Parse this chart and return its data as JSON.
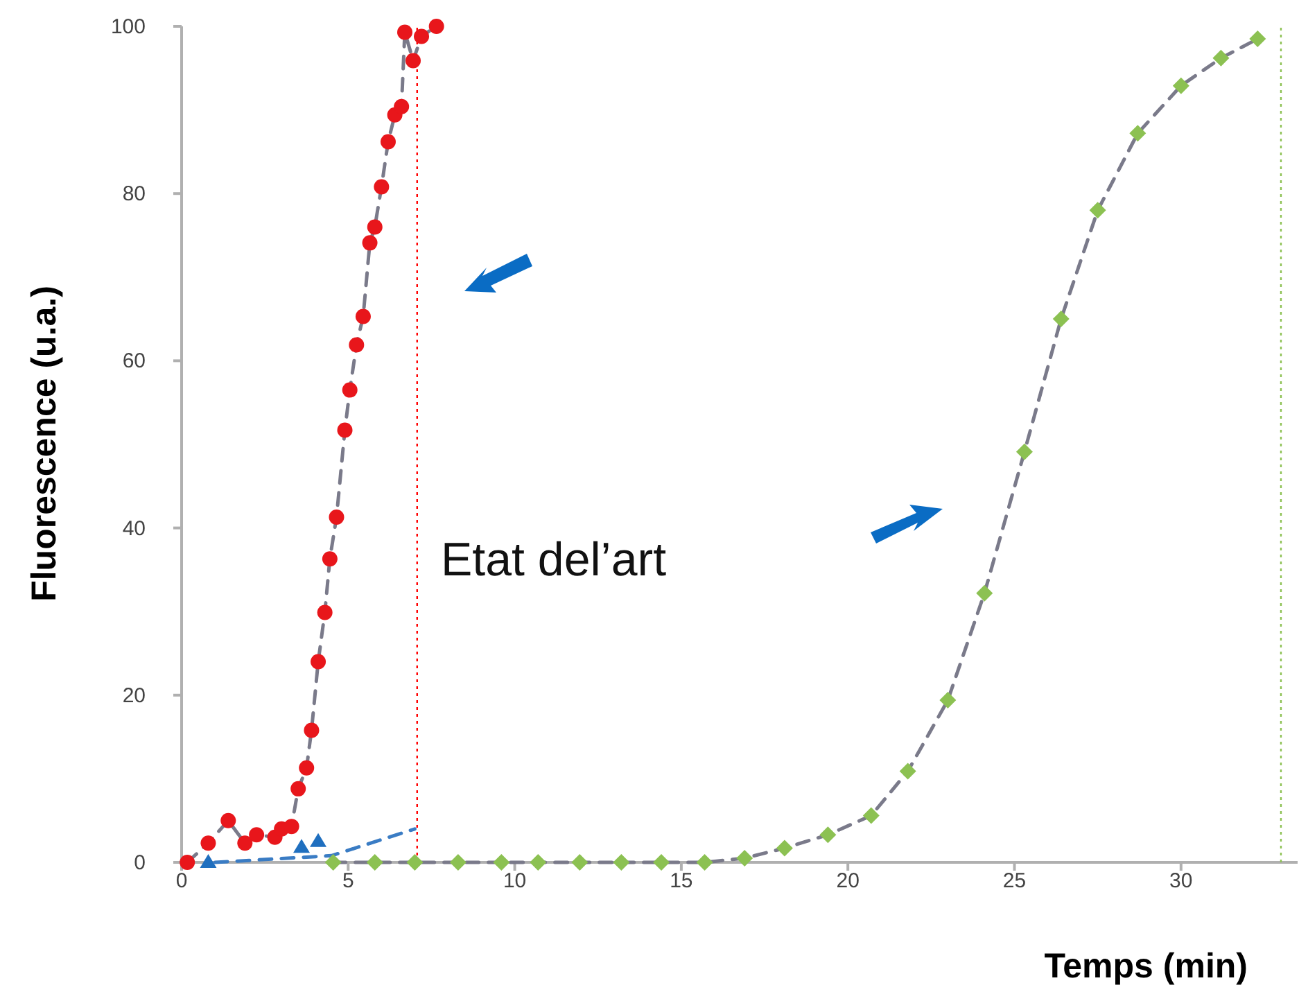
{
  "chart_data": {
    "type": "line",
    "xlabel": "Temps (min)",
    "ylabel": "Fluorescence (u.a.)",
    "xlim": [
      0,
      33.5
    ],
    "ylim": [
      0,
      100
    ],
    "xticks": [
      0,
      5,
      10,
      15,
      20,
      25,
      30
    ],
    "yticks": [
      0,
      20,
      40,
      60,
      80,
      100
    ],
    "grid": false,
    "line_style": "dashed",
    "series": [
      {
        "marker": "circle",
        "color": "#e8161b",
        "x": [
          0.17,
          0.8,
          1.4,
          1.9,
          2.25,
          2.8,
          3.0,
          3.3,
          3.5,
          3.75,
          3.9,
          4.1,
          4.3,
          4.45,
          4.65,
          4.9,
          5.05,
          5.25,
          5.45,
          5.65,
          5.8,
          6.0,
          6.2,
          6.4,
          6.6,
          6.7,
          6.95,
          7.2,
          7.65
        ],
        "values": [
          0,
          2.3,
          5,
          2.3,
          3.3,
          3.0,
          4.0,
          4.3,
          8.8,
          11.3,
          15.8,
          24,
          29.9,
          36.3,
          41.3,
          51.7,
          56.5,
          61.9,
          65.3,
          74.1,
          76,
          80.8,
          86.2,
          89.4,
          90.4,
          99.3,
          95.9,
          98.8,
          100
        ]
      },
      {
        "type": "scatter",
        "marker": "triangle",
        "color": "#1f6fbf",
        "x": [
          0.8,
          3.6,
          4.1
        ],
        "values": [
          0,
          1.8,
          2.5
        ]
      },
      {
        "marker": "none",
        "color": "#3a7cc4",
        "x": [
          1,
          4.5,
          7
        ],
        "values": [
          0,
          0.8,
          4
        ]
      },
      {
        "marker": "diamond",
        "color": "#8cc152",
        "x": [
          4.55,
          5.8,
          7.0,
          8.3,
          9.6,
          10.7,
          11.95,
          13.2,
          14.4,
          15.7,
          16.9,
          18.1,
          19.4,
          20.7,
          21.8,
          23.0,
          24.1,
          25.3,
          26.4,
          27.5,
          28.7,
          30.0,
          31.2,
          32.3
        ],
        "values": [
          0,
          0,
          0,
          0,
          0,
          0,
          0,
          0,
          0,
          0,
          0.5,
          1.7,
          3.3,
          5.6,
          10.9,
          19.4,
          32.2,
          49.1,
          65,
          78,
          87.2,
          92.9,
          96.2,
          98.5
        ]
      }
    ],
    "ref_lines": [
      {
        "axis": "x",
        "value": 7.07,
        "color": "#ff0000",
        "line_style": "dotted"
      },
      {
        "axis": "x",
        "value": 33.0,
        "color": "#8cc152",
        "line_style": "dotted"
      }
    ],
    "annotations": [
      "Etat del’art"
    ]
  }
}
